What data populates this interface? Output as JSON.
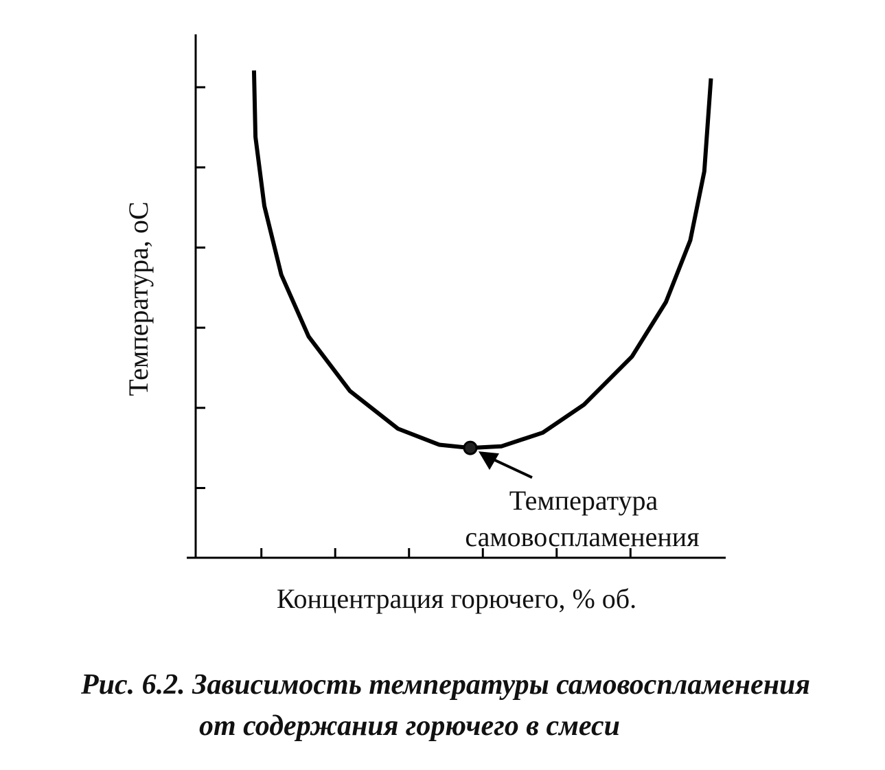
{
  "chart_data": {
    "type": "line",
    "x_label": "Концентрация горючего, % об.",
    "y_label": "Температура, оС",
    "caption": [
      "Рис. 6.2. Зависимость температуры самовоспламенения",
      "от содержания горючего в смеси"
    ],
    "xlim": [
      0.11,
      7.29
    ],
    "ylim": [
      0.13,
      6.66
    ],
    "xticks": [
      1,
      2,
      3,
      4,
      5,
      6
    ],
    "yticks": [
      1,
      2,
      3,
      4,
      5,
      6
    ],
    "series": [
      {
        "color": "#000000",
        "x": [
          0.9,
          0.92,
          1.04,
          1.27,
          1.64,
          2.2,
          2.85,
          3.41,
          3.83,
          4.25,
          4.81,
          5.37,
          6.02,
          6.48,
          6.81,
          7.0,
          7.09
        ],
        "values": [
          6.21,
          5.38,
          4.52,
          3.66,
          2.89,
          2.21,
          1.74,
          1.54,
          1.5,
          1.52,
          1.69,
          2.04,
          2.64,
          3.32,
          4.09,
          4.95,
          6.11
        ]
      }
    ],
    "annotation": {
      "text": [
        "Температура",
        "самовоспламенения"
      ],
      "x": 3.83,
      "y": 1.5
    }
  }
}
